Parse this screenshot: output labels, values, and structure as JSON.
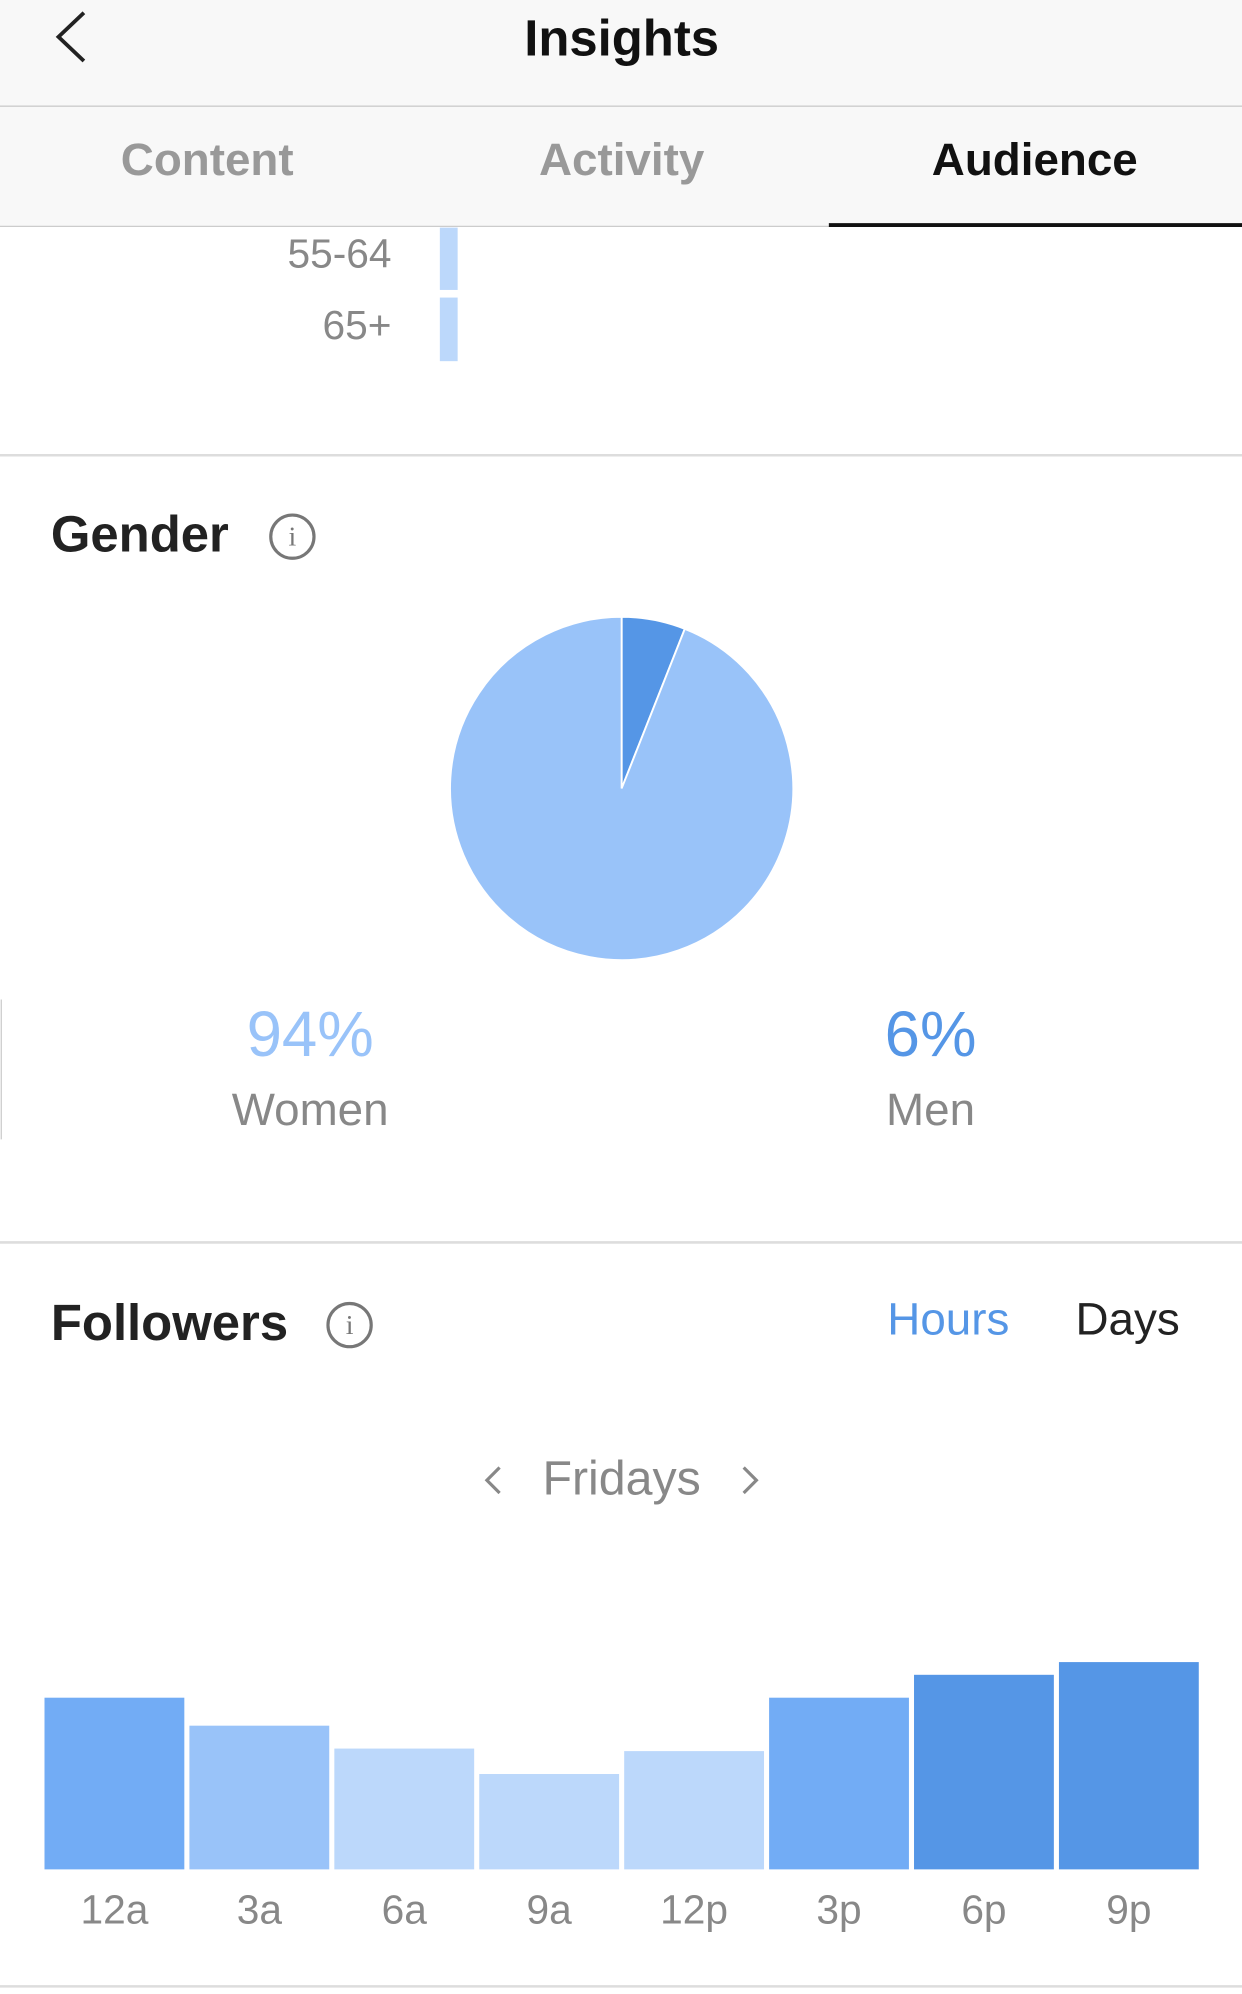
{
  "header": {
    "title": "Insights"
  },
  "tabs": [
    "Content",
    "Activity",
    "Audience"
  ],
  "age": {
    "categories": [
      "55-64",
      "65+"
    ]
  },
  "gender": {
    "title": "Gender",
    "chart_data": {
      "type": "pie",
      "categories": [
        "Women",
        "Men"
      ],
      "values": [
        94,
        6
      ],
      "value_labels": [
        "94%",
        "6%"
      ],
      "colors": [
        "#99c3f9",
        "#5596e6"
      ]
    }
  },
  "followers": {
    "title": "Followers",
    "toggles": [
      "Hours",
      "Days"
    ],
    "day": "Fridays",
    "chart_data": {
      "type": "bar",
      "categories": [
        "12a",
        "3a",
        "6a",
        "9a",
        "12p",
        "3p",
        "6p",
        "9p"
      ],
      "values": [
        135,
        113,
        95,
        75,
        93,
        135,
        153,
        163
      ],
      "colors": [
        "#72acf5",
        "#99c3f9",
        "#bcd8fb",
        "#bcd8fb",
        "#bcd8fb",
        "#72acf5",
        "#5596e6",
        "#5596e6"
      ]
    }
  }
}
